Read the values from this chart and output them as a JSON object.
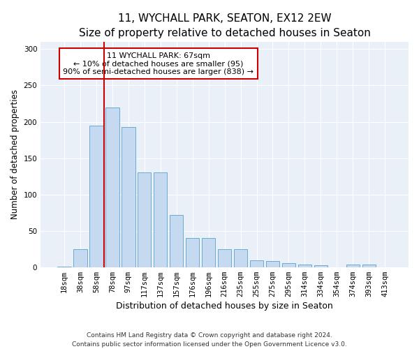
{
  "title": "11, WYCHALL PARK, SEATON, EX12 2EW",
  "subtitle": "Size of property relative to detached houses in Seaton",
  "xlabel": "Distribution of detached houses by size in Seaton",
  "ylabel": "Number of detached properties",
  "categories": [
    "18sqm",
    "38sqm",
    "58sqm",
    "78sqm",
    "97sqm",
    "117sqm",
    "137sqm",
    "157sqm",
    "176sqm",
    "196sqm",
    "216sqm",
    "235sqm",
    "255sqm",
    "275sqm",
    "295sqm",
    "314sqm",
    "334sqm",
    "354sqm",
    "374sqm",
    "393sqm",
    "413sqm"
  ],
  "values": [
    1,
    25,
    195,
    220,
    193,
    130,
    130,
    72,
    40,
    40,
    25,
    25,
    9,
    8,
    5,
    4,
    3,
    0,
    4,
    4,
    0
  ],
  "bar_color": "#c5d9f0",
  "bar_edge_color": "#6aaad4",
  "vline_color": "#cc0000",
  "vline_pos": 2.5,
  "annotation_text": "11 WYCHALL PARK: 67sqm\n← 10% of detached houses are smaller (95)\n90% of semi-detached houses are larger (838) →",
  "annotation_box_facecolor": "white",
  "annotation_box_edgecolor": "#cc0000",
  "ylim": [
    0,
    310
  ],
  "yticks": [
    0,
    50,
    100,
    150,
    200,
    250,
    300
  ],
  "footer1": "Contains HM Land Registry data © Crown copyright and database right 2024.",
  "footer2": "Contains public sector information licensed under the Open Government Licence v3.0.",
  "plot_bg_color": "#eaf0f8",
  "title_fontsize": 11,
  "subtitle_fontsize": 9.5,
  "xlabel_fontsize": 9,
  "ylabel_fontsize": 8.5,
  "tick_fontsize": 7.5,
  "annot_fontsize": 8,
  "footer_fontsize": 6.5
}
